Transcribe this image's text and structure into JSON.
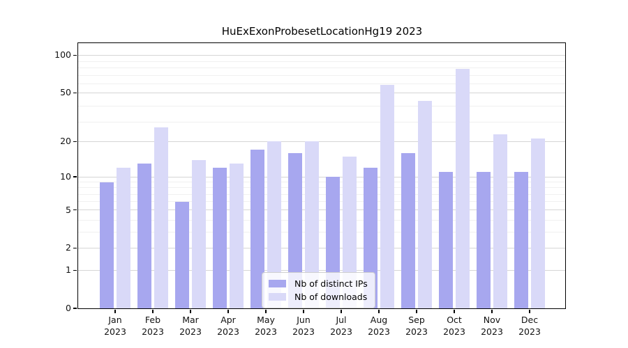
{
  "title": "HuExExonProbesetLocationHg19 2023",
  "chart_data": {
    "type": "bar",
    "title": "HuExExonProbesetLocationHg19 2023",
    "categories": [
      "Jan 2023",
      "Feb 2023",
      "Mar 2023",
      "Apr 2023",
      "May 2023",
      "Jun 2023",
      "Jul 2023",
      "Aug 2023",
      "Sep 2023",
      "Oct 2023",
      "Nov 2023",
      "Dec 2023"
    ],
    "series": [
      {
        "name": "Nb of distinct IPs",
        "color": "#a7a7ef",
        "values": [
          9,
          13,
          6,
          12,
          17,
          16,
          10,
          12,
          16,
          11,
          11,
          11
        ]
      },
      {
        "name": "Nb of downloads",
        "color": "#d9d9f8",
        "values": [
          12,
          26,
          14,
          13,
          20,
          20,
          15,
          58,
          43,
          78,
          23,
          21
        ]
      }
    ],
    "xlabel": "",
    "ylabel": "",
    "y_scale": "log1p",
    "y_ticks": [
      100,
      50,
      20,
      10,
      5,
      2,
      1,
      0
    ],
    "y_minor_gridlines": [
      3,
      4,
      6,
      7,
      8,
      9,
      29,
      39,
      59,
      69,
      79,
      89
    ],
    "ylim": [
      0,
      125
    ],
    "grid": "horizontal major + minor",
    "legend_position": "lower center inside plot",
    "colors": {
      "major_grid": "#d5d5d5",
      "minor_grid": "#f0f0f0",
      "axis": "#000000",
      "background": "#ffffff"
    }
  }
}
